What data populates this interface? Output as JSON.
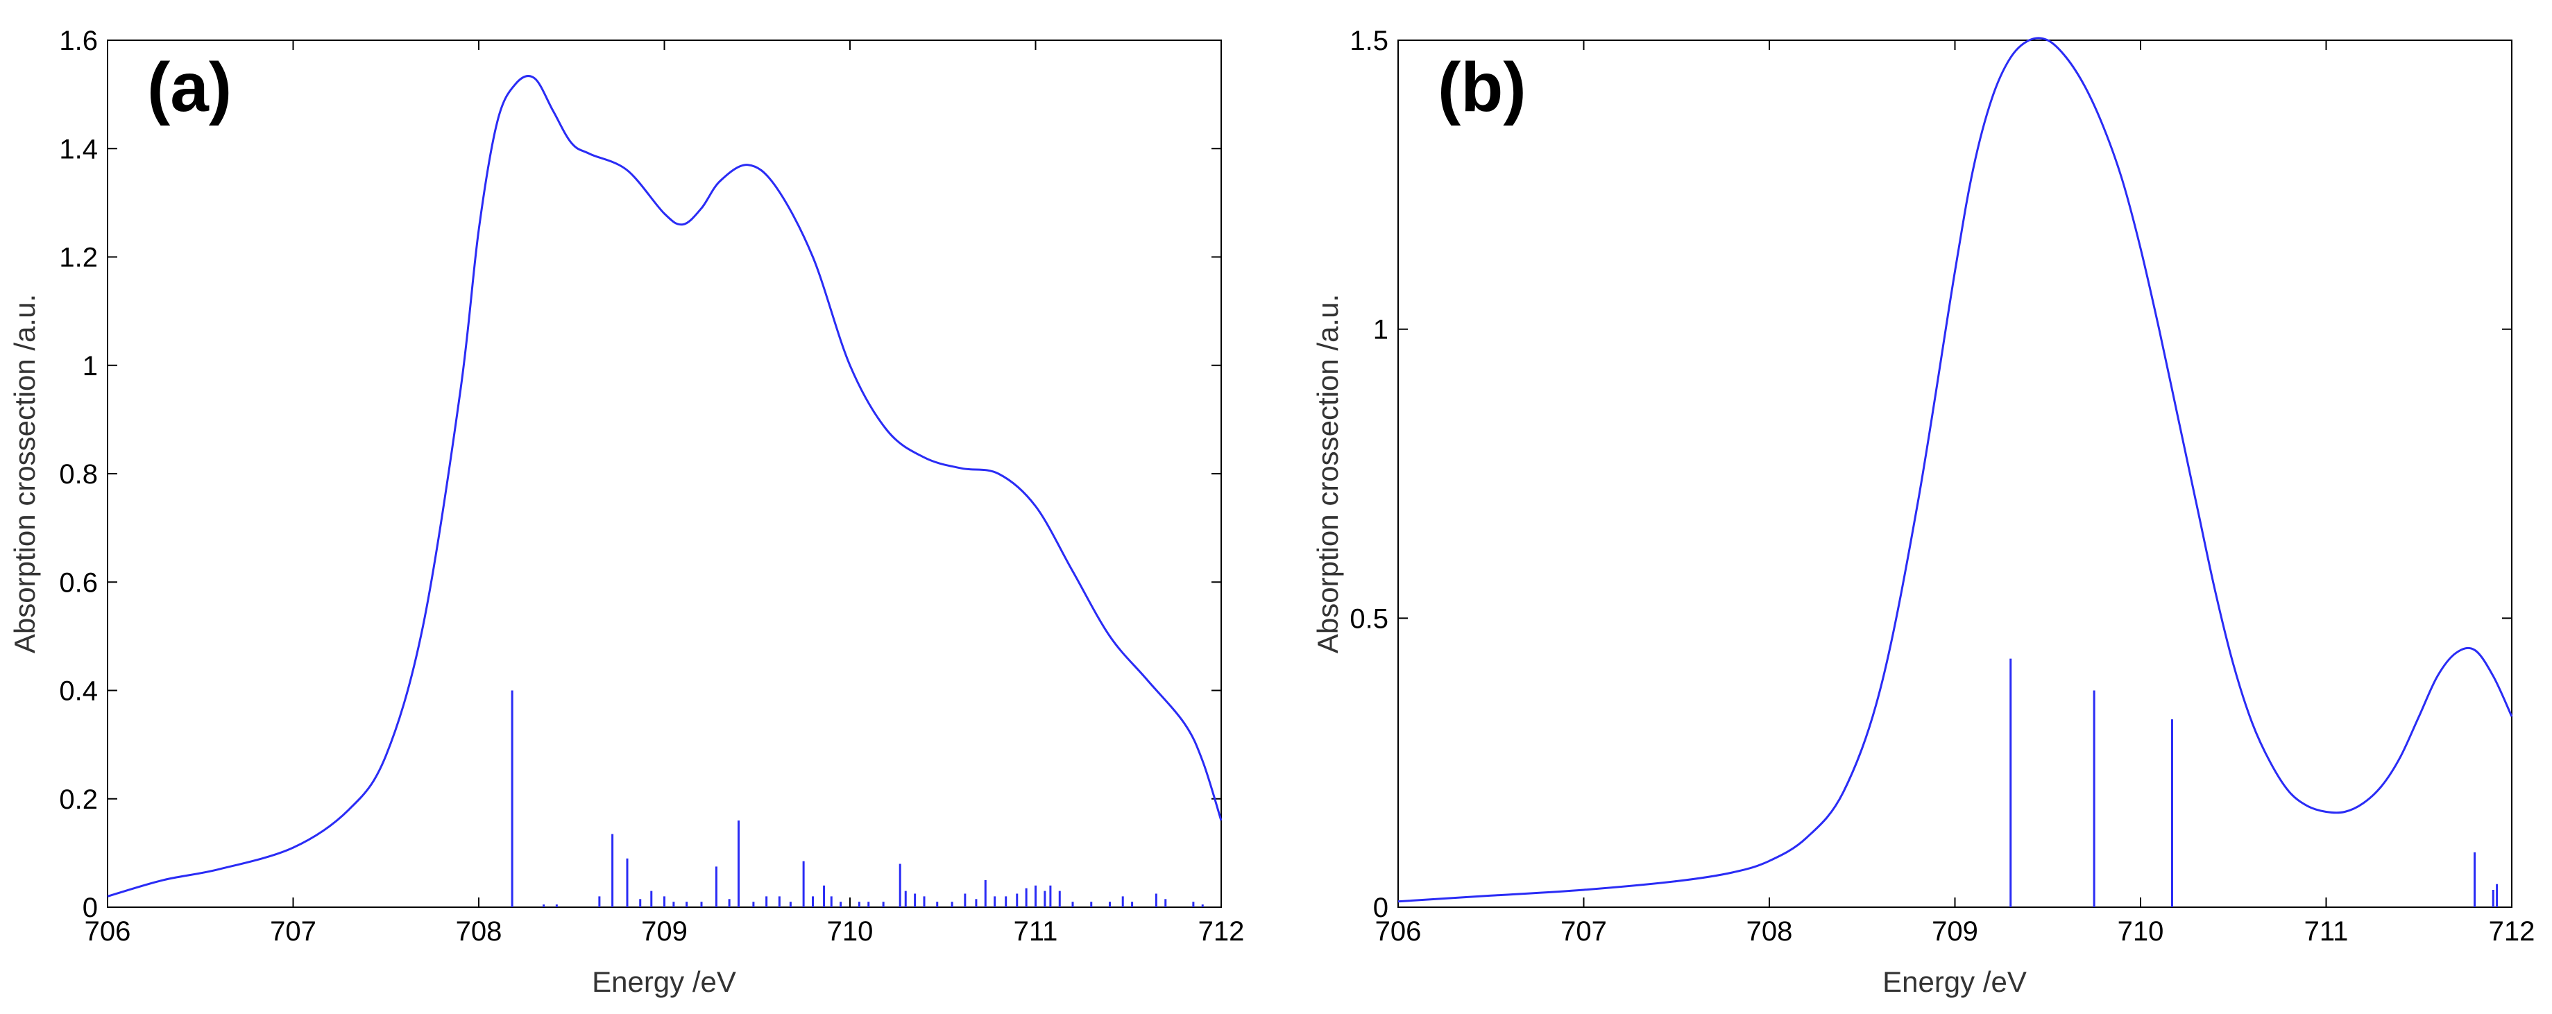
{
  "colors": {
    "series": "#2a2cf5",
    "axes": "#000000",
    "background": "#ffffff"
  },
  "chart_data": [
    {
      "panel": "(a)",
      "type": "line",
      "xlabel": "Energy /eV",
      "ylabel": "Absorption crossection /a.u.",
      "xlim": [
        706,
        712
      ],
      "ylim": [
        0,
        1.6
      ],
      "xticks": [
        "706",
        "707",
        "708",
        "709",
        "710",
        "711",
        "712"
      ],
      "yticks": [
        "0",
        "0.2",
        "0.4",
        "0.6",
        "0.8",
        "1",
        "1.2",
        "1.4",
        "1.6"
      ],
      "grid": false,
      "curve": {
        "x": [
          706.0,
          706.3,
          706.6,
          707.0,
          707.3,
          707.5,
          707.7,
          707.9,
          708.0,
          708.1,
          708.2,
          708.3,
          708.4,
          708.5,
          708.6,
          708.8,
          709.0,
          709.1,
          709.2,
          709.3,
          709.45,
          709.6,
          709.8,
          710.0,
          710.2,
          710.4,
          710.6,
          710.8,
          711.0,
          711.2,
          711.4,
          711.6,
          711.8,
          711.9,
          712.0
        ],
        "y": [
          0.02,
          0.05,
          0.07,
          0.11,
          0.18,
          0.28,
          0.52,
          0.95,
          1.25,
          1.45,
          1.52,
          1.53,
          1.47,
          1.41,
          1.39,
          1.36,
          1.28,
          1.26,
          1.29,
          1.34,
          1.37,
          1.33,
          1.2,
          1.0,
          0.88,
          0.83,
          0.81,
          0.8,
          0.74,
          0.62,
          0.5,
          0.42,
          0.34,
          0.27,
          0.16
        ]
      },
      "sticks": {
        "x": [
          708.18,
          708.35,
          708.42,
          708.65,
          708.72,
          708.8,
          708.87,
          708.93,
          709.0,
          709.05,
          709.12,
          709.2,
          709.28,
          709.35,
          709.4,
          709.48,
          709.55,
          709.62,
          709.68,
          709.75,
          709.8,
          709.86,
          709.9,
          709.95,
          710.05,
          710.1,
          710.18,
          710.27,
          710.3,
          710.35,
          710.4,
          710.47,
          710.55,
          710.62,
          710.68,
          710.73,
          710.78,
          710.84,
          710.9,
          710.95,
          711.0,
          711.05,
          711.08,
          711.13,
          711.2,
          711.3,
          711.4,
          711.47,
          711.52,
          711.65,
          711.7,
          711.85,
          711.9
        ],
        "y": [
          0.4,
          0.005,
          0.005,
          0.02,
          0.135,
          0.09,
          0.015,
          0.03,
          0.02,
          0.01,
          0.01,
          0.01,
          0.075,
          0.015,
          0.16,
          0.01,
          0.02,
          0.02,
          0.01,
          0.085,
          0.02,
          0.04,
          0.02,
          0.01,
          0.01,
          0.01,
          0.01,
          0.08,
          0.03,
          0.025,
          0.02,
          0.01,
          0.01,
          0.025,
          0.015,
          0.05,
          0.02,
          0.02,
          0.025,
          0.035,
          0.04,
          0.03,
          0.04,
          0.03,
          0.01,
          0.01,
          0.01,
          0.02,
          0.01,
          0.025,
          0.015,
          0.01,
          0.005
        ]
      }
    },
    {
      "panel": "(b)",
      "type": "line",
      "xlabel": "Energy /eV",
      "ylabel": "Absorption crossection /a.u.",
      "xlim": [
        706,
        712
      ],
      "ylim": [
        0,
        1.5
      ],
      "xticks": [
        "706",
        "707",
        "708",
        "709",
        "710",
        "711",
        "712"
      ],
      "yticks": [
        "0",
        "0.5",
        "1",
        "1.5"
      ],
      "grid": false,
      "curve": {
        "x": [
          706.0,
          706.5,
          707.0,
          707.5,
          707.8,
          708.0,
          708.2,
          708.4,
          708.6,
          708.8,
          709.0,
          709.1,
          709.2,
          709.3,
          709.4,
          709.5,
          709.6,
          709.7,
          709.8,
          709.9,
          710.0,
          710.1,
          710.2,
          710.3,
          710.4,
          710.5,
          710.6,
          710.7,
          710.8,
          710.9,
          711.0,
          711.1,
          711.2,
          711.3,
          711.4,
          711.5,
          711.6,
          711.7,
          711.8,
          711.9,
          712.0
        ],
        "y": [
          0.01,
          0.02,
          0.03,
          0.045,
          0.06,
          0.08,
          0.12,
          0.2,
          0.38,
          0.7,
          1.1,
          1.28,
          1.4,
          1.47,
          1.5,
          1.5,
          1.47,
          1.42,
          1.35,
          1.26,
          1.14,
          1.0,
          0.85,
          0.7,
          0.55,
          0.42,
          0.32,
          0.25,
          0.2,
          0.175,
          0.165,
          0.165,
          0.18,
          0.21,
          0.26,
          0.33,
          0.4,
          0.44,
          0.445,
          0.4,
          0.33
        ]
      },
      "sticks": {
        "x": [
          709.3,
          709.75,
          710.17,
          711.8,
          711.9,
          711.92
        ],
        "y": [
          0.43,
          0.375,
          0.325,
          0.095,
          0.03,
          0.04
        ]
      }
    }
  ]
}
